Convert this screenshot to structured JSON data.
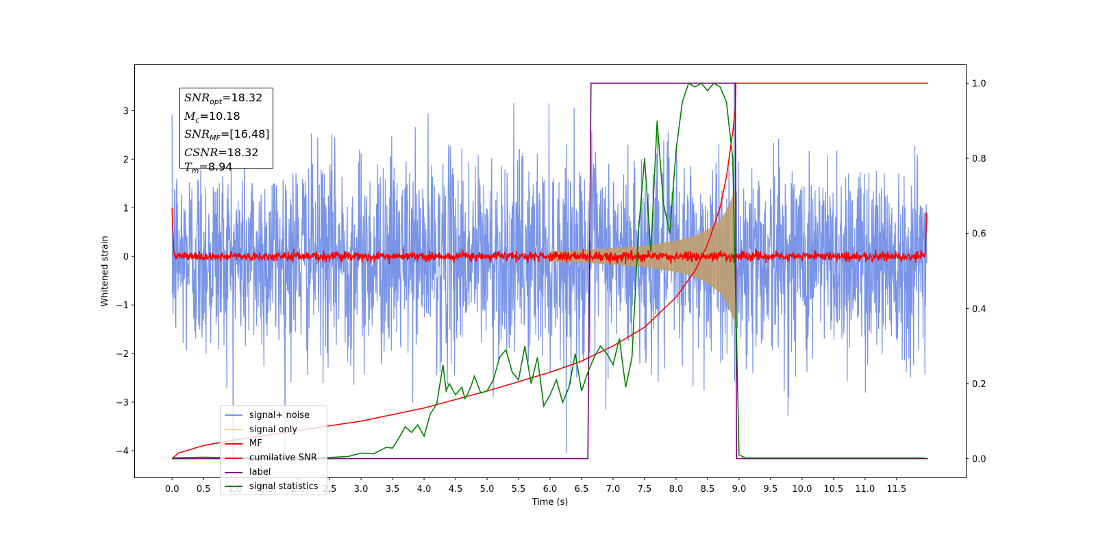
{
  "chart_data": {
    "type": "line",
    "xlabel": "Time (s)",
    "ylabel": "Whitened strain",
    "xlim": [
      -0.6,
      12.6
    ],
    "ylim": [
      -4.55,
      3.95
    ],
    "y2lim": [
      -0.05,
      1.05
    ],
    "xticks": [
      "0.0",
      "0.5",
      "1.0",
      "1.5",
      "2.0",
      "2.5",
      "3.0",
      "3.5",
      "4.0",
      "4.5",
      "5.0",
      "5.5",
      "6.0",
      "6.5",
      "7.0",
      "7.5",
      "8.0",
      "8.5",
      "9.0",
      "9.5",
      "10.0",
      "10.5",
      "11.0",
      "11.5"
    ],
    "yticks": [
      "3",
      "2",
      "1",
      "0",
      "−1",
      "−2",
      "−3",
      "−4"
    ],
    "y2ticks": [
      "1.0",
      "0.8",
      "0.6",
      "0.4",
      "0.2",
      "0.0"
    ],
    "annotation": {
      "snr_opt": "=18.32",
      "mc": "=10.18",
      "snr_mf": "=[16.48]",
      "csnr": "=18.32",
      "tm": "=8.94"
    },
    "series": [
      {
        "name": "signal+ noise",
        "color": "#7a94e8",
        "axis": "left",
        "description": "noisy strain, approx ±3.5 amplitude over 0–12 s"
      },
      {
        "name": "signal only",
        "color": "#ffd27f",
        "axis": "left",
        "envelope_x": [
          0.0,
          2.0,
          4.0,
          5.0,
          6.0,
          6.5,
          7.0,
          7.5,
          8.0,
          8.3,
          8.5,
          8.7,
          8.8,
          8.9,
          8.94
        ],
        "envelope_y": [
          0.01,
          0.02,
          0.05,
          0.07,
          0.1,
          0.13,
          0.17,
          0.22,
          0.32,
          0.42,
          0.55,
          0.75,
          0.95,
          1.25,
          1.4
        ]
      },
      {
        "name": "MF",
        "color": "#ff0000",
        "axis": "left",
        "description": "matched filter output near 0 with ±0.2 noise"
      },
      {
        "name": "cumilative SNR",
        "color": "#ff0000",
        "axis": "right",
        "x": [
          0.0,
          0.1,
          0.5,
          1.0,
          2.0,
          3.0,
          4.0,
          5.0,
          6.0,
          6.5,
          7.0,
          7.5,
          8.0,
          8.3,
          8.5,
          8.7,
          8.8,
          8.9,
          8.94,
          8.95,
          12.0
        ],
        "y": [
          0.0,
          0.015,
          0.035,
          0.05,
          0.075,
          0.1,
          0.135,
          0.18,
          0.23,
          0.26,
          0.3,
          0.35,
          0.43,
          0.5,
          0.57,
          0.67,
          0.75,
          0.87,
          0.93,
          1.0,
          1.0
        ]
      },
      {
        "name": "label",
        "color": "#800080",
        "axis": "right",
        "x": [
          0.0,
          6.6,
          6.65,
          8.94,
          8.96,
          12.0
        ],
        "y": [
          0.0,
          0.0,
          1.0,
          1.0,
          0.0,
          0.0
        ]
      },
      {
        "name": "signal statistics",
        "color": "#008000",
        "axis": "right",
        "x": [
          0.0,
          0.5,
          1.0,
          1.5,
          2.0,
          2.5,
          2.8,
          3.0,
          3.2,
          3.4,
          3.5,
          3.6,
          3.7,
          3.8,
          3.9,
          4.0,
          4.1,
          4.2,
          4.3,
          4.35,
          4.4,
          4.5,
          4.55,
          4.6,
          4.65,
          4.7,
          4.75,
          4.8,
          4.9,
          5.0,
          5.1,
          5.2,
          5.3,
          5.4,
          5.5,
          5.6,
          5.7,
          5.8,
          5.9,
          6.0,
          6.1,
          6.2,
          6.3,
          6.4,
          6.5,
          6.6,
          6.7,
          6.8,
          6.9,
          7.0,
          7.1,
          7.2,
          7.3,
          7.4,
          7.5,
          7.6,
          7.7,
          7.8,
          7.9,
          8.0,
          8.1,
          8.2,
          8.3,
          8.4,
          8.5,
          8.6,
          8.7,
          8.8,
          8.9,
          9.0,
          9.1,
          10.0,
          11.0,
          11.95
        ],
        "y": [
          0.002,
          0.004,
          0.002,
          0.003,
          0.002,
          0.003,
          0.006,
          0.015,
          0.013,
          0.03,
          0.028,
          0.055,
          0.085,
          0.07,
          0.09,
          0.06,
          0.12,
          0.145,
          0.25,
          0.18,
          0.2,
          0.17,
          0.18,
          0.19,
          0.16,
          0.175,
          0.195,
          0.22,
          0.175,
          0.18,
          0.21,
          0.27,
          0.29,
          0.23,
          0.21,
          0.3,
          0.2,
          0.27,
          0.14,
          0.17,
          0.21,
          0.15,
          0.19,
          0.28,
          0.18,
          0.23,
          0.27,
          0.3,
          0.28,
          0.25,
          0.32,
          0.19,
          0.27,
          0.6,
          0.8,
          0.55,
          0.9,
          0.68,
          0.6,
          0.82,
          0.95,
          1.0,
          0.99,
          1.0,
          0.98,
          1.0,
          0.99,
          0.95,
          0.8,
          0.01,
          0.002,
          0.002,
          0.002,
          0.002
        ]
      }
    ],
    "legend": [
      "signal+ noise",
      "signal only",
      "MF",
      "cumilative SNR",
      "label",
      "signal statistics"
    ],
    "legend_position": "lower-left",
    "grid": false
  }
}
